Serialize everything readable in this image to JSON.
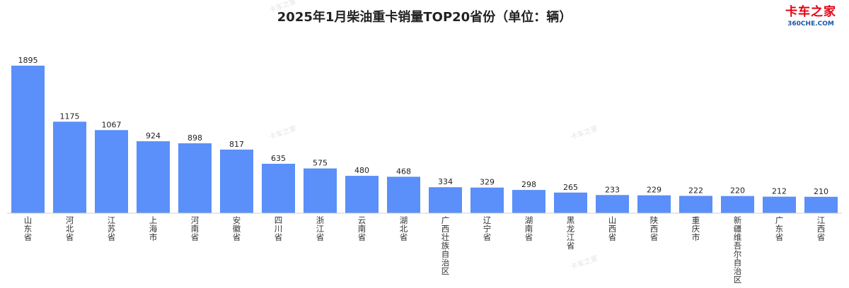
{
  "chart_data": {
    "type": "bar",
    "title": "2025年1月柴油重卡销量TOP20省份（单位：辆）",
    "categories": [
      "山东省",
      "河北省",
      "江苏省",
      "上海市",
      "河南省",
      "安徽省",
      "四川省",
      "浙江省",
      "云南省",
      "湖北省",
      "广西壮族自治区",
      "辽宁省",
      "湖南省",
      "黑龙江省",
      "山西省",
      "陕西省",
      "重庆市",
      "新疆维吾尔自治区",
      "广东省",
      "江西省"
    ],
    "values": [
      1895,
      1175,
      1067,
      924,
      898,
      817,
      635,
      575,
      480,
      468,
      334,
      329,
      298,
      265,
      233,
      229,
      222,
      220,
      212,
      210
    ],
    "ylim": [
      0,
      1895
    ],
    "xlabel": "",
    "ylabel": "",
    "bar_color": "#5b8ff9",
    "grid": false,
    "legend": "none"
  },
  "logo": {
    "brand": "卡车之家",
    "site": "360CHE.COM"
  },
  "watermark": "卡车之家"
}
